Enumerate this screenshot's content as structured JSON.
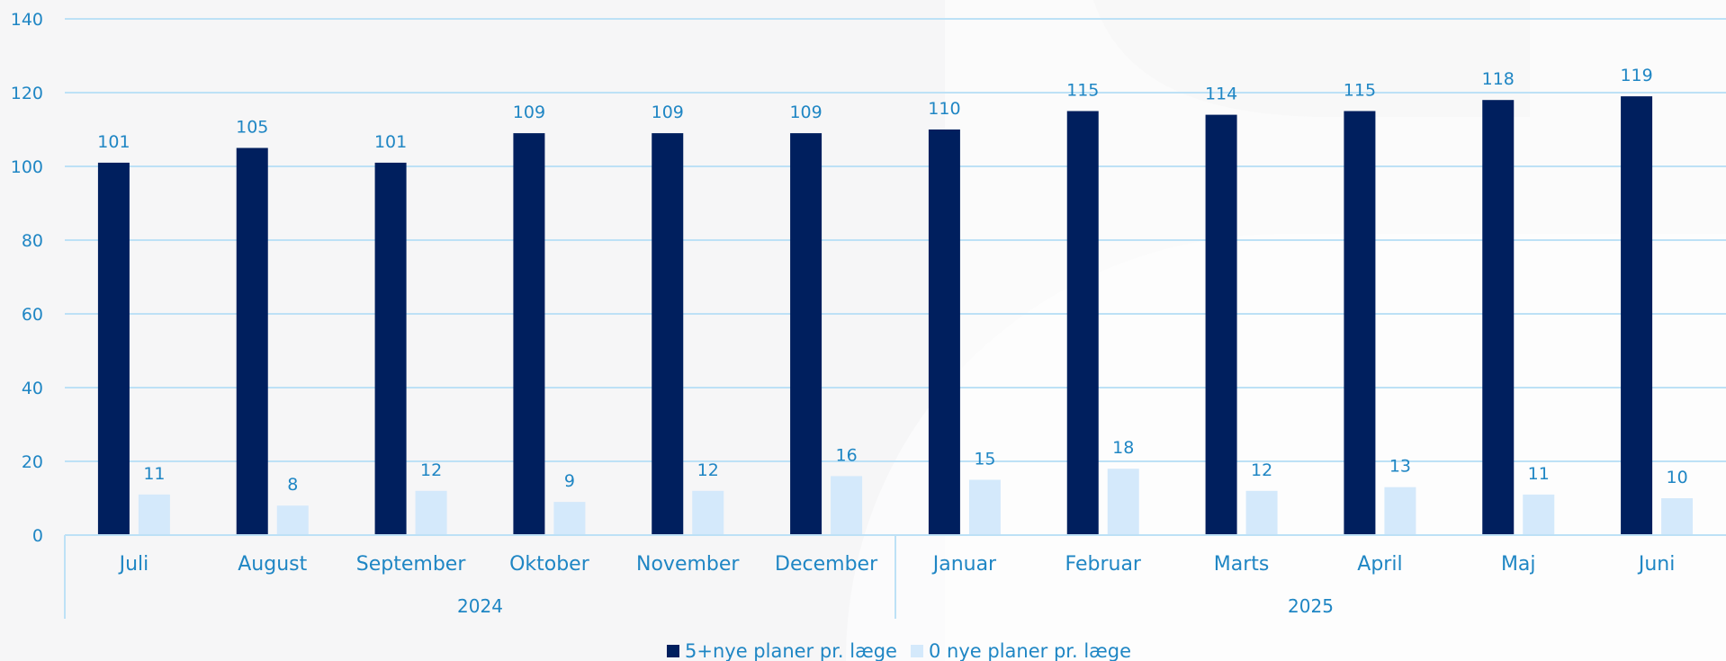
{
  "chart_data": {
    "type": "bar",
    "title": "",
    "xlabel": "",
    "ylabel": "",
    "ylim": [
      0,
      140
    ],
    "yticks": [
      0,
      20,
      40,
      60,
      80,
      100,
      120,
      140
    ],
    "grid": true,
    "legend_position": "bottom-center",
    "groups": [
      {
        "label": "2024",
        "categories": [
          "Juli",
          "August",
          "September",
          "Oktober",
          "November",
          "December"
        ]
      },
      {
        "label": "2025",
        "categories": [
          "Januar",
          "Februar",
          "Marts",
          "April",
          "Maj",
          "Juni"
        ]
      }
    ],
    "categories": [
      "Juli",
      "August",
      "September",
      "Oktober",
      "November",
      "December",
      "Januar",
      "Februar",
      "Marts",
      "April",
      "Maj",
      "Juni"
    ],
    "series": [
      {
        "name": "5+nye planer pr. læge",
        "color": "#001f5e",
        "values": [
          101,
          105,
          101,
          109,
          109,
          109,
          110,
          115,
          114,
          115,
          118,
          119
        ]
      },
      {
        "name": "0 nye planer pr. læge",
        "color": "#d4e9fb",
        "values": [
          11,
          8,
          12,
          9,
          12,
          16,
          15,
          18,
          12,
          13,
          11,
          10
        ]
      }
    ]
  }
}
